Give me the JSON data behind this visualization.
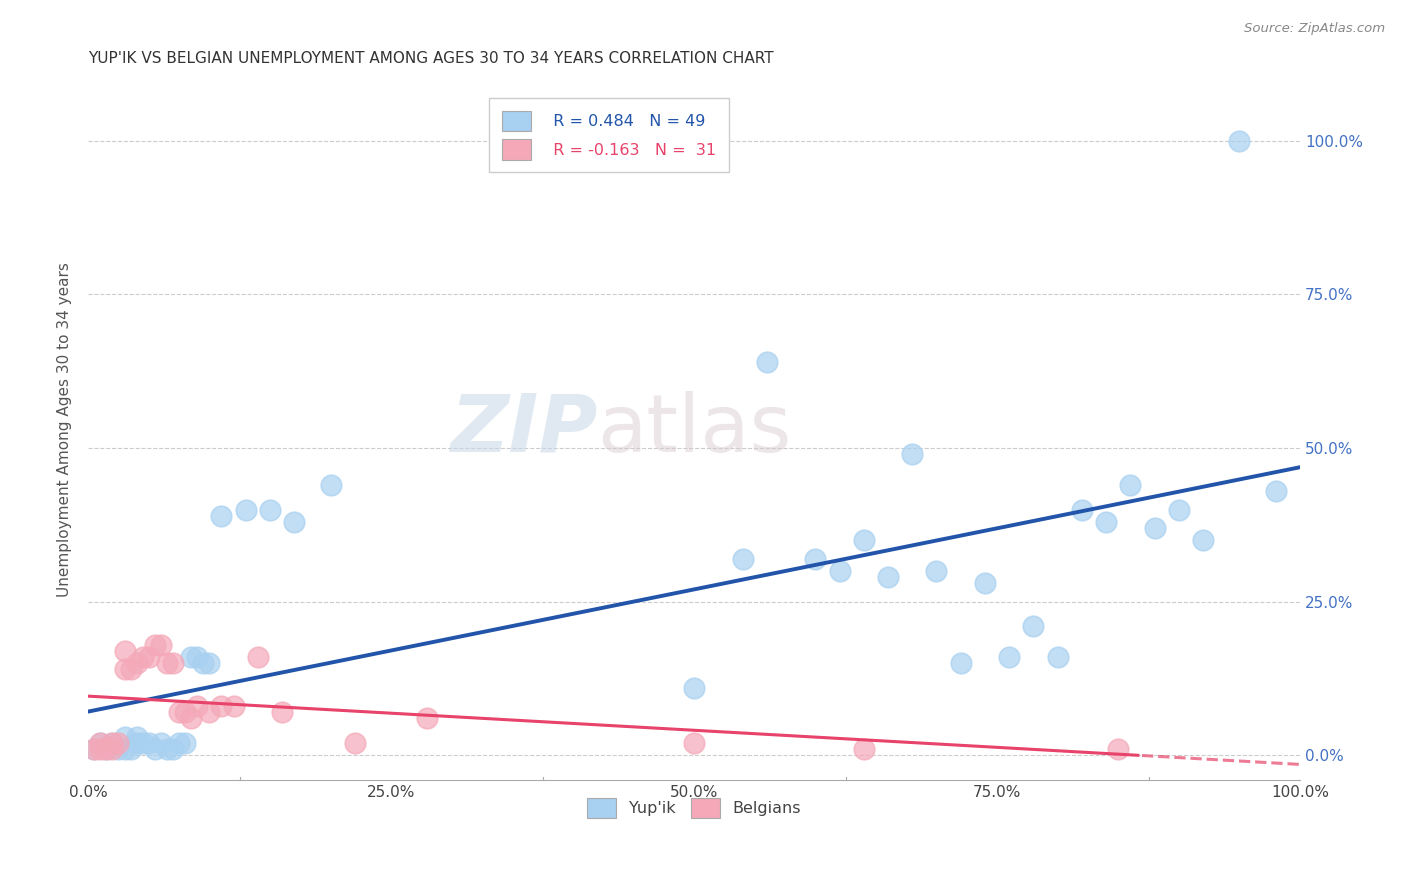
{
  "title": "YUP'IK VS BELGIAN UNEMPLOYMENT AMONG AGES 30 TO 34 YEARS CORRELATION CHART",
  "source": "Source: ZipAtlas.com",
  "ylabel": "Unemployment Among Ages 30 to 34 years",
  "xlim": [
    0.0,
    1.0
  ],
  "ylim": [
    -0.04,
    1.1
  ],
  "xtick_labels": [
    "0.0%",
    "",
    "25.0%",
    "",
    "50.0%",
    "",
    "75.0%",
    "",
    "100.0%"
  ],
  "xtick_vals": [
    0.0,
    0.125,
    0.25,
    0.375,
    0.5,
    0.625,
    0.75,
    0.875,
    1.0
  ],
  "ytick_vals": [
    0.0,
    0.25,
    0.5,
    0.75,
    1.0
  ],
  "right_ytick_labels": [
    "0.0%",
    "25.0%",
    "50.0%",
    "75.0%",
    "100.0%"
  ],
  "right_ytick_color": "#4472C4",
  "legend_r1": "R = 0.484",
  "legend_n1": "N = 49",
  "legend_r2": "R = -0.163",
  "legend_n2": "N =  31",
  "yupik_color": "#A8D0F0",
  "belgians_color": "#F4A8B8",
  "yupik_line_color": "#2255AA",
  "belgians_line_color": "#E8436A",
  "watermark_zip": "ZIP",
  "watermark_atlas": "atlas",
  "background_color": "#FFFFFF",
  "yupik_x": [
    0.005,
    0.01,
    0.015,
    0.02,
    0.025,
    0.03,
    0.03,
    0.035,
    0.04,
    0.04,
    0.045,
    0.05,
    0.055,
    0.06,
    0.065,
    0.07,
    0.075,
    0.08,
    0.085,
    0.09,
    0.095,
    0.1,
    0.11,
    0.13,
    0.15,
    0.17,
    0.2,
    0.5,
    0.54,
    0.56,
    0.6,
    0.62,
    0.64,
    0.66,
    0.68,
    0.7,
    0.72,
    0.74,
    0.76,
    0.78,
    0.8,
    0.82,
    0.84,
    0.86,
    0.88,
    0.9,
    0.92,
    0.95,
    0.98
  ],
  "yupik_y": [
    0.01,
    0.02,
    0.01,
    0.02,
    0.01,
    0.01,
    0.03,
    0.01,
    0.02,
    0.03,
    0.02,
    0.02,
    0.01,
    0.02,
    0.01,
    0.01,
    0.02,
    0.02,
    0.16,
    0.16,
    0.15,
    0.15,
    0.39,
    0.4,
    0.4,
    0.38,
    0.44,
    0.11,
    0.32,
    0.64,
    0.32,
    0.3,
    0.35,
    0.29,
    0.49,
    0.3,
    0.15,
    0.28,
    0.16,
    0.21,
    0.16,
    0.4,
    0.38,
    0.44,
    0.37,
    0.4,
    0.35,
    1.0,
    0.43
  ],
  "belgians_x": [
    0.005,
    0.01,
    0.01,
    0.015,
    0.02,
    0.02,
    0.025,
    0.03,
    0.03,
    0.035,
    0.04,
    0.045,
    0.05,
    0.055,
    0.06,
    0.065,
    0.07,
    0.075,
    0.08,
    0.085,
    0.09,
    0.1,
    0.11,
    0.12,
    0.14,
    0.16,
    0.22,
    0.28,
    0.5,
    0.64,
    0.85
  ],
  "belgians_y": [
    0.01,
    0.02,
    0.01,
    0.01,
    0.01,
    0.02,
    0.02,
    0.14,
    0.17,
    0.14,
    0.15,
    0.16,
    0.16,
    0.18,
    0.18,
    0.15,
    0.15,
    0.07,
    0.07,
    0.06,
    0.08,
    0.07,
    0.08,
    0.08,
    0.16,
    0.07,
    0.02,
    0.06,
    0.02,
    0.01,
    0.01
  ]
}
